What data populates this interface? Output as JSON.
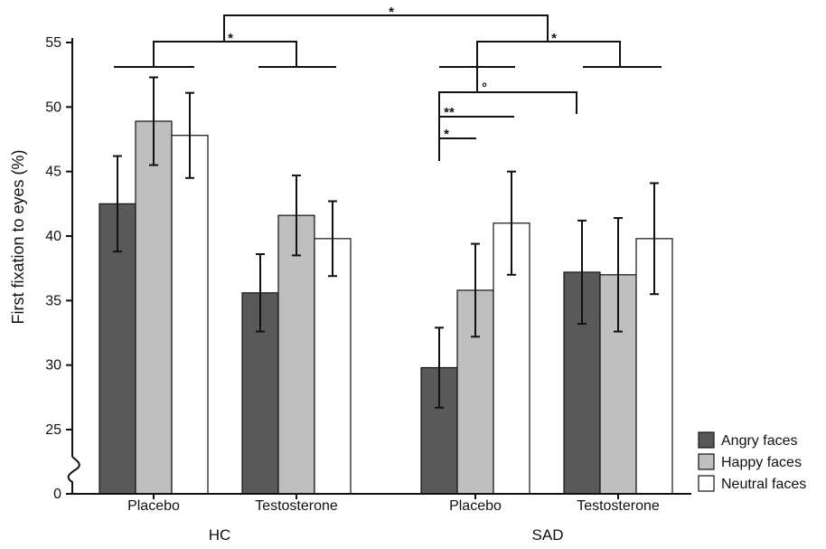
{
  "chart_data": {
    "type": "bar",
    "ylabel": "First  fixation to eyes (%)",
    "xlabel": "",
    "ylim": [
      25,
      55
    ],
    "y_ticks": [
      "0",
      "25",
      "30",
      "35",
      "40",
      "45",
      "50",
      "55"
    ],
    "y_axis_break": true,
    "groups": [
      {
        "label": "HC",
        "categories": [
          "Placebo",
          "Testosterone"
        ]
      },
      {
        "label": "SAD",
        "categories": [
          "Placebo",
          "Testosterone"
        ]
      }
    ],
    "series": [
      {
        "name": "Angry faces",
        "color": "#595959",
        "values": [
          42.5,
          35.6,
          29.8,
          37.2
        ],
        "errors": [
          3.7,
          3.0,
          3.1,
          4.0
        ]
      },
      {
        "name": "Happy faces",
        "color": "#bfbfbf",
        "values": [
          48.9,
          41.6,
          35.8,
          37.0
        ],
        "errors": [
          3.4,
          3.1,
          3.6,
          4.4
        ]
      },
      {
        "name": "Neutral faces",
        "color": "#ffffff",
        "values": [
          47.8,
          39.8,
          41.0,
          39.8
        ],
        "errors": [
          3.3,
          2.9,
          4.0,
          4.3
        ]
      }
    ],
    "significance": [
      "*",
      "*",
      "*",
      "°",
      "**",
      "*"
    ],
    "legend_position": "bottom-right"
  }
}
